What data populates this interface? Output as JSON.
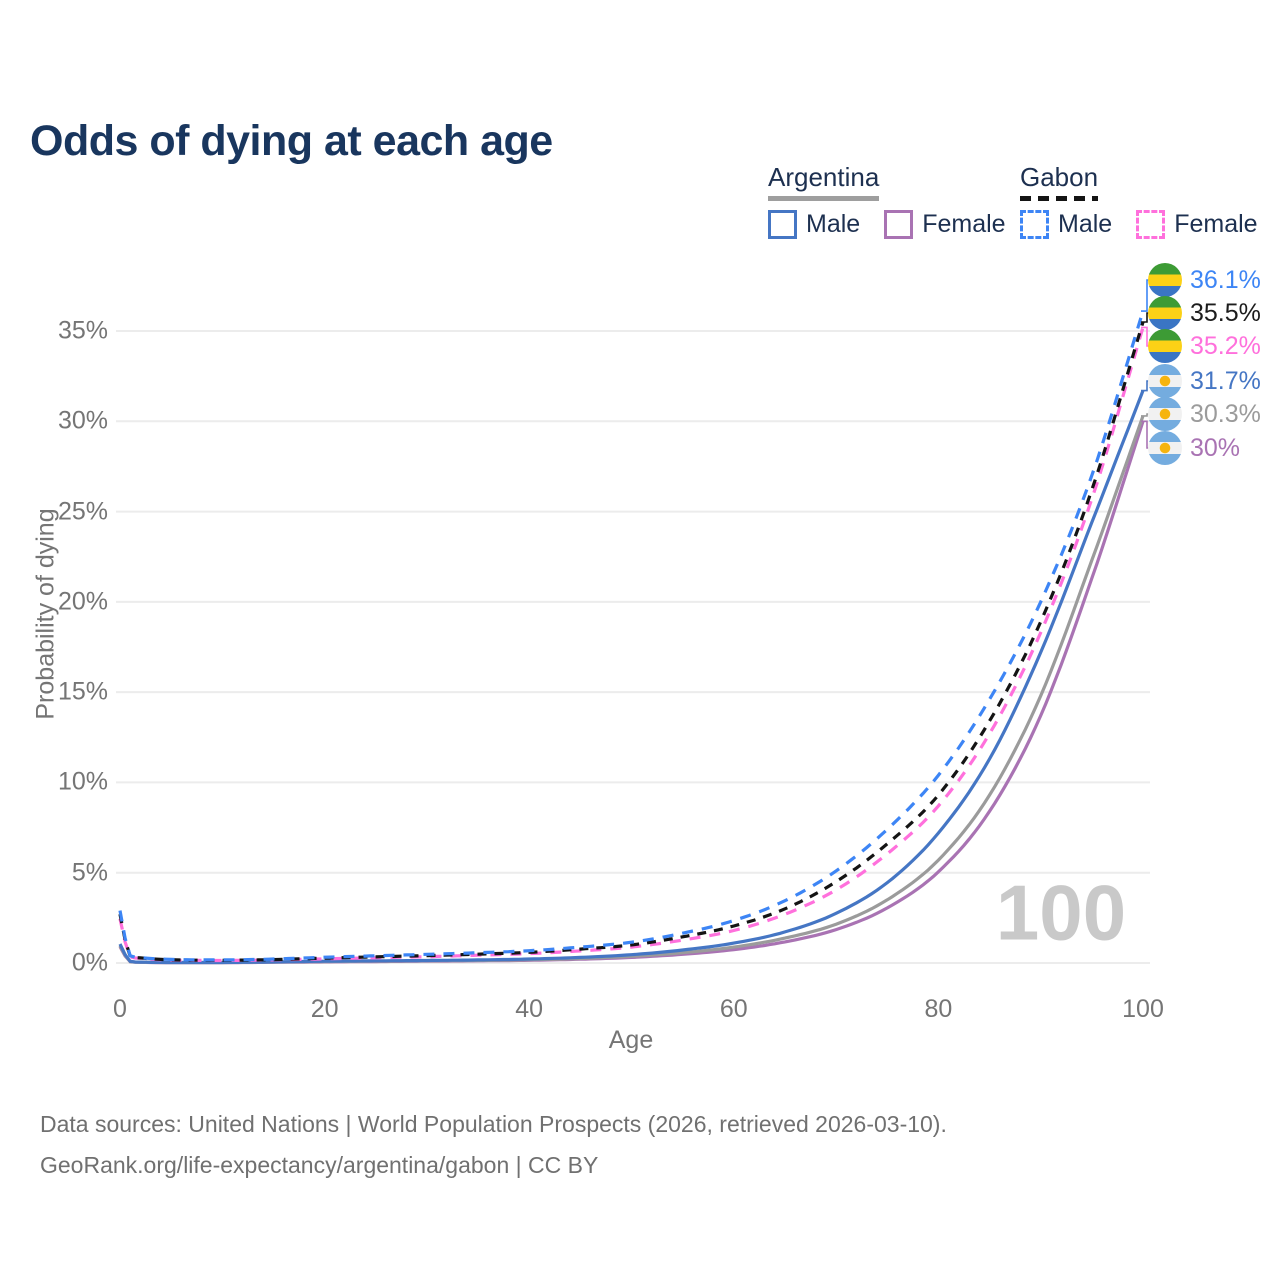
{
  "title": "Odds of dying at each age",
  "legend": {
    "groups": [
      {
        "label": "Argentina",
        "underline_style": "solid",
        "underline_color": "#9e9e9e",
        "items": [
          {
            "label": "Male",
            "color": "#4576c4",
            "dashed": false
          },
          {
            "label": "Female",
            "color": "#a973b3",
            "dashed": false
          }
        ]
      },
      {
        "label": "Gabon",
        "underline_style": "dashed",
        "underline_color": "#141414",
        "items": [
          {
            "label": "Male",
            "color": "#3d85f5",
            "dashed": true
          },
          {
            "label": "Female",
            "color": "#ff70dc",
            "dashed": true
          }
        ]
      }
    ]
  },
  "axes": {
    "x": {
      "label": "Age",
      "ticks": [
        "0",
        "20",
        "40",
        "60",
        "80",
        "100"
      ],
      "range": [
        0,
        100
      ]
    },
    "y": {
      "label": "Probability of dying",
      "ticks": [
        "0%",
        "5%",
        "10%",
        "15%",
        "20%",
        "25%",
        "30%",
        "35%"
      ],
      "range_percent": [
        0,
        35
      ]
    }
  },
  "end_labels": [
    {
      "text": "36.1%",
      "color": "#3d85f5",
      "flag": "gabon"
    },
    {
      "text": "35.5%",
      "color": "#1c1c1c",
      "flag": "gabon"
    },
    {
      "text": "35.2%",
      "color": "#ff70dc",
      "flag": "gabon"
    },
    {
      "text": "31.7%",
      "color": "#4576c4",
      "flag": "argentina"
    },
    {
      "text": "30.3%",
      "color": "#9b9b9b",
      "flag": "argentina"
    },
    {
      "text": "30%",
      "color": "#a973b3",
      "flag": "argentina"
    }
  ],
  "watermark": "100",
  "source": {
    "line1": "Data sources: United Nations | World Population Prospects (2026, retrieved 2026-03-10).",
    "line2": "GeoRank.org/life-expectancy/argentina/gabon | CC BY"
  },
  "chart_data": {
    "type": "line",
    "title": "Odds of dying at each age",
    "xlabel": "Age",
    "ylabel": "Probability of dying",
    "unit": "percent",
    "xlim": [
      0,
      100
    ],
    "ylim_percent": [
      0,
      35
    ],
    "grid": "horizontal",
    "legend_position": "top-right",
    "x": [
      0,
      1,
      2,
      5,
      10,
      15,
      20,
      25,
      30,
      35,
      40,
      45,
      50,
      55,
      60,
      65,
      70,
      75,
      80,
      85,
      90,
      95,
      100
    ],
    "series": [
      {
        "name": "Gabon — Male",
        "color": "#3d85f5",
        "dash": true,
        "dash_pattern": "11 9",
        "end_label": "36.1%",
        "values": [
          2.9,
          0.4,
          0.3,
          0.2,
          0.17,
          0.22,
          0.32,
          0.4,
          0.48,
          0.57,
          0.68,
          0.88,
          1.15,
          1.65,
          2.35,
          3.45,
          5.1,
          7.4,
          10.4,
          14.6,
          20.0,
          27.0,
          36.1
        ]
      },
      {
        "name": "Gabon — Both sexes",
        "color": "#141414",
        "dash": true,
        "dash_pattern": "9 8",
        "end_label": "35.5%",
        "values": [
          2.7,
          0.37,
          0.28,
          0.18,
          0.15,
          0.19,
          0.27,
          0.34,
          0.41,
          0.49,
          0.59,
          0.77,
          1.0,
          1.45,
          2.05,
          3.0,
          4.5,
          6.6,
          9.3,
          13.4,
          18.9,
          26.2,
          35.5
        ]
      },
      {
        "name": "Gabon — Female",
        "color": "#ff70dc",
        "dash": true,
        "dash_pattern": "11 9",
        "end_label": "35.2%",
        "values": [
          2.45,
          0.34,
          0.26,
          0.16,
          0.14,
          0.17,
          0.23,
          0.29,
          0.35,
          0.43,
          0.52,
          0.67,
          0.88,
          1.27,
          1.8,
          2.7,
          4.05,
          6.05,
          8.7,
          12.7,
          18.3,
          25.7,
          35.2
        ]
      },
      {
        "name": "Argentina — Male",
        "color": "#4576c4",
        "dash": false,
        "end_label": "31.7%",
        "values": [
          1.05,
          0.09,
          0.05,
          0.03,
          0.03,
          0.06,
          0.1,
          0.12,
          0.14,
          0.17,
          0.22,
          0.31,
          0.46,
          0.72,
          1.1,
          1.72,
          2.75,
          4.45,
          7.2,
          11.3,
          17.2,
          24.4,
          31.7
        ]
      },
      {
        "name": "Argentina — Both sexes",
        "color": "#9b9b9b",
        "dash": false,
        "end_label": "30.3%",
        "values": [
          0.95,
          0.08,
          0.04,
          0.03,
          0.03,
          0.05,
          0.08,
          0.1,
          0.12,
          0.14,
          0.18,
          0.25,
          0.37,
          0.57,
          0.88,
          1.38,
          2.15,
          3.5,
          5.7,
          9.3,
          14.8,
          22.3,
          30.3
        ]
      },
      {
        "name": "Argentina — Female",
        "color": "#a973b3",
        "dash": false,
        "end_label": "30%",
        "values": [
          0.9,
          0.07,
          0.04,
          0.02,
          0.02,
          0.04,
          0.06,
          0.08,
          0.1,
          0.12,
          0.15,
          0.21,
          0.31,
          0.48,
          0.74,
          1.17,
          1.85,
          3.05,
          5.05,
          8.4,
          13.7,
          21.3,
          30.0
        ]
      }
    ]
  }
}
